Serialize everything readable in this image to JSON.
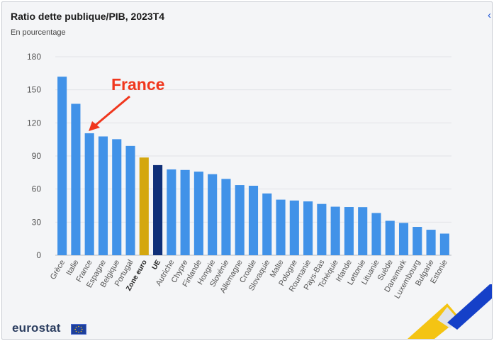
{
  "header": {
    "title": "Ratio dette publique/PIB, 2023T4",
    "subtitle": "En pourcentage"
  },
  "annotation": {
    "label": "France",
    "color": "#f0371e"
  },
  "footer": {
    "logo_text": "eurostat",
    "logo_icon": "eu-flag-icon"
  },
  "colors": {
    "bar": "#4192e8",
    "euro_area": "#d4a70f",
    "eu": "#0f2f78",
    "grid": "#e2e4e7"
  },
  "chart_data": {
    "type": "bar",
    "title": "Ratio dette publique/PIB, 2023T4",
    "subtitle": "En pourcentage",
    "xlabel": "",
    "ylabel": "",
    "ylim": [
      0,
      180
    ],
    "yticks": [
      0,
      30,
      60,
      90,
      120,
      150,
      180
    ],
    "grid": true,
    "categories": [
      "Grèce",
      "Italie",
      "France",
      "Espagne",
      "Belgique",
      "Portugal",
      "Zone euro",
      "UE",
      "Autriche",
      "Chypre",
      "Finlande",
      "Hongrie",
      "Slovénie",
      "Allemagne",
      "Croatie",
      "Slovaquie",
      "Malte",
      "Pologne",
      "Roumanie",
      "Pays-Bas",
      "Tchéquie",
      "Irlande",
      "Lettonie",
      "Lituanie",
      "Suède",
      "Danemark",
      "Luxembourg",
      "Bulgarie",
      "Estonie"
    ],
    "values": [
      161.9,
      137.3,
      110.6,
      107.7,
      105.2,
      99.1,
      88.6,
      81.7,
      77.8,
      77.3,
      75.8,
      73.5,
      69.2,
      63.6,
      63.0,
      56.0,
      50.4,
      49.6,
      48.8,
      46.5,
      44.0,
      43.7,
      43.6,
      38.3,
      31.2,
      29.3,
      25.7,
      23.1,
      19.6
    ],
    "highlight": {
      "Zone euro": "euro_area",
      "UE": "eu"
    },
    "bold_categories": [
      "Zone euro",
      "UE"
    ]
  }
}
